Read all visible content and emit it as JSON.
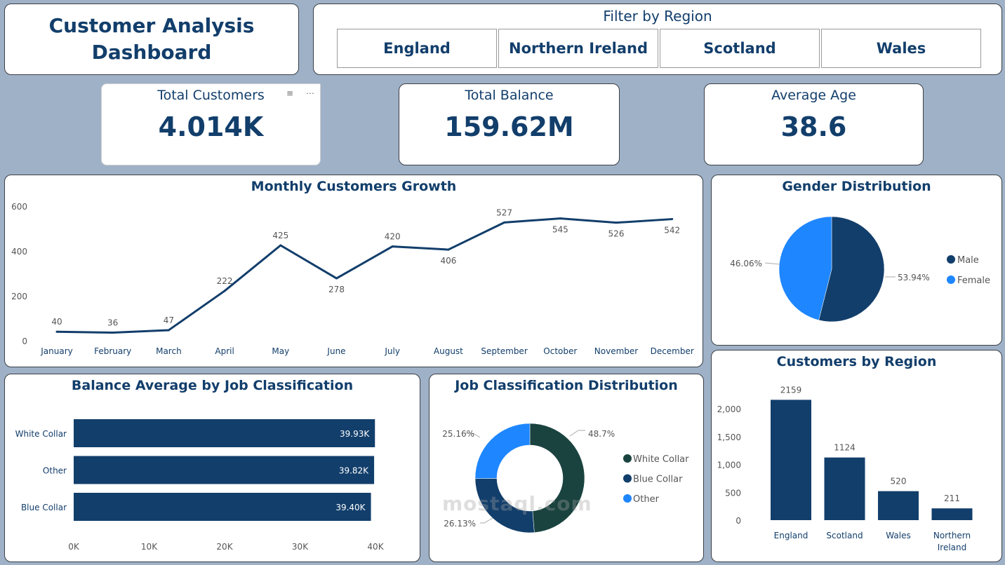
{
  "header": {
    "title": "Customer Analysis\nDashboard",
    "filter_title": "Filter by Region",
    "regions": [
      "England",
      "Northern Ireland",
      "Scotland",
      "Wales"
    ]
  },
  "kpis": [
    {
      "label": "Total Customers",
      "value": "4.014K"
    },
    {
      "label": "Total Balance",
      "value": "159.62M"
    },
    {
      "label": "Average Age",
      "value": "38.6"
    }
  ],
  "kpi_icons": {
    "filter": "filter-icon",
    "more": "more-options-icon",
    "filter_glyph": "≡",
    "more_glyph": "⋯"
  },
  "colors": {
    "navy": "#123e6b",
    "bright_blue": "#1e86ff",
    "dark_green": "#1a433f",
    "background": "#9fb1c7"
  },
  "watermark": "mostaql.com",
  "chart_data": [
    {
      "type": "line",
      "title": "Monthly Customers Growth",
      "categories": [
        "January",
        "February",
        "March",
        "April",
        "May",
        "June",
        "July",
        "August",
        "September",
        "October",
        "November",
        "December"
      ],
      "values": [
        40,
        36,
        47,
        222,
        425,
        278,
        420,
        406,
        527,
        545,
        526,
        542
      ],
      "yticks": [
        "0",
        "200",
        "400",
        "600"
      ],
      "ylim": [
        0,
        600
      ],
      "xlabel": "",
      "ylabel": "",
      "grid": false
    },
    {
      "type": "pie",
      "title": "Gender Distribution",
      "labels": [
        "Male",
        "Female"
      ],
      "values": [
        53.94,
        46.06
      ],
      "data_labels": [
        "53.94%",
        "46.06%"
      ],
      "legend": "right"
    },
    {
      "type": "bar",
      "title": "Customers by Region",
      "categories": [
        "England",
        "Scotland",
        "Wales",
        "Northern Ireland"
      ],
      "values": [
        2159,
        1124,
        520,
        211
      ],
      "yticks": [
        "0",
        "500",
        "1,000",
        "1,500",
        "2,000"
      ],
      "ylim": [
        0,
        2300
      ]
    },
    {
      "type": "bar",
      "orientation": "horizontal",
      "title": "Balance Average by Job Classification",
      "categories": [
        "White Collar",
        "Other",
        "Blue Collar"
      ],
      "values": [
        39930,
        39820,
        39400
      ],
      "data_labels": [
        "39.93K",
        "39.82K",
        "39.40K"
      ],
      "xticks": [
        "0K",
        "10K",
        "20K",
        "30K",
        "40K"
      ],
      "xlim": [
        0,
        40000
      ]
    },
    {
      "type": "pie",
      "variant": "donut",
      "title": "Job Classification Distribution",
      "labels": [
        "White Collar",
        "Blue Collar",
        "Other"
      ],
      "values": [
        48.7,
        26.13,
        25.16
      ],
      "data_labels": [
        "48.7%",
        "26.13%",
        "25.16%"
      ],
      "legend": "right"
    }
  ]
}
